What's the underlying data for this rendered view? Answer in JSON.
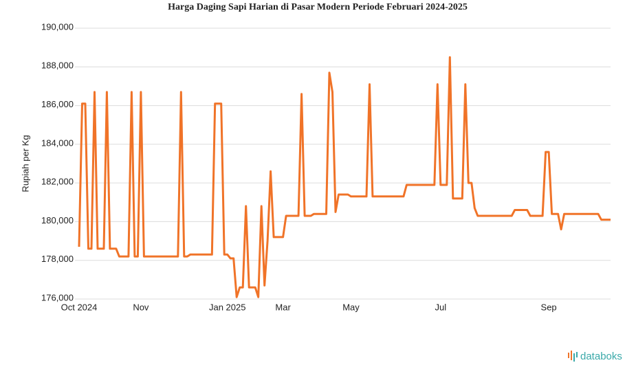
{
  "chart_data": {
    "type": "line",
    "title": "Harga Daging Sapi Harian di Pasar Modern Periode Februari 2024-2025",
    "ylabel": "Rupiah per Kg",
    "categories": [
      "Oct 2024",
      null,
      null,
      null,
      null,
      null,
      null,
      null,
      null,
      null,
      null,
      null,
      null,
      null,
      null,
      null,
      null,
      null,
      null,
      null,
      "Nov",
      null,
      null,
      null,
      null,
      null,
      null,
      null,
      null,
      null,
      null,
      null,
      null,
      null,
      null,
      null,
      null,
      null,
      null,
      null,
      null,
      null,
      null,
      null,
      null,
      null,
      null,
      null,
      "Jan 2025",
      null,
      null,
      null,
      null,
      null,
      null,
      null,
      null,
      null,
      null,
      null,
      null,
      null,
      null,
      null,
      null,
      null,
      "Mar",
      null,
      null,
      null,
      null,
      null,
      null,
      null,
      null,
      null,
      null,
      null,
      null,
      null,
      null,
      null,
      null,
      null,
      null,
      null,
      null,
      null,
      "May",
      null,
      null,
      null,
      null,
      null,
      null,
      null,
      null,
      null,
      null,
      null,
      null,
      null,
      null,
      null,
      null,
      null,
      null,
      null,
      null,
      null,
      null,
      null,
      null,
      null,
      null,
      null,
      null,
      "Jul",
      null,
      null,
      null,
      null,
      null,
      null,
      null,
      null,
      null,
      null,
      null,
      null,
      null,
      null,
      null,
      null,
      null,
      null,
      null,
      null,
      null,
      null,
      null,
      null,
      null,
      null,
      null,
      null,
      null,
      null,
      null,
      null,
      null,
      null,
      "Sep",
      null,
      null,
      null,
      null,
      null,
      null,
      null,
      null,
      null,
      null,
      null,
      null,
      null,
      null,
      null,
      null,
      null,
      null,
      null,
      null
    ],
    "series": [
      {
        "name": "Harga",
        "color": "#f07328",
        "values": [
          178700,
          186100,
          186100,
          178600,
          178600,
          186700,
          178600,
          178600,
          178600,
          186700,
          178600,
          178600,
          178600,
          178200,
          178200,
          178200,
          178200,
          186700,
          178200,
          178200,
          186700,
          178200,
          178200,
          178200,
          178200,
          178200,
          178200,
          178200,
          178200,
          178200,
          178200,
          178200,
          178200,
          186700,
          178200,
          178200,
          178300,
          178300,
          178300,
          178300,
          178300,
          178300,
          178300,
          178300,
          186100,
          186100,
          186100,
          178300,
          178300,
          178100,
          178100,
          176100,
          176600,
          176600,
          180800,
          176600,
          176600,
          176600,
          176100,
          180800,
          176700,
          179000,
          182600,
          179200,
          179200,
          179200,
          179200,
          180300,
          180300,
          180300,
          180300,
          180300,
          186600,
          180300,
          180300,
          180300,
          180400,
          180400,
          180400,
          180400,
          180400,
          187700,
          186700,
          180500,
          181400,
          181400,
          181400,
          181400,
          181300,
          181300,
          181300,
          181300,
          181300,
          181300,
          187100,
          181300,
          181300,
          181300,
          181300,
          181300,
          181300,
          181300,
          181300,
          181300,
          181300,
          181300,
          181900,
          181900,
          181900,
          181900,
          181900,
          181900,
          181900,
          181900,
          181900,
          181900,
          187100,
          181900,
          181900,
          181900,
          188500,
          181200,
          181200,
          181200,
          181200,
          187100,
          182000,
          182000,
          180700,
          180300,
          180300,
          180300,
          180300,
          180300,
          180300,
          180300,
          180300,
          180300,
          180300,
          180300,
          180300,
          180600,
          180600,
          180600,
          180600,
          180600,
          180300,
          180300,
          180300,
          180300,
          180300,
          183600,
          183600,
          180400,
          180400,
          180400,
          179600,
          180400,
          180400,
          180400,
          180400,
          180400,
          180400,
          180400,
          180400,
          180400,
          180400,
          180400,
          180400,
          180100,
          180100,
          180100,
          180100
        ]
      }
    ],
    "ylim": [
      176000,
      190000
    ],
    "yticks": [
      {
        "value": 176000,
        "label": "176,000"
      },
      {
        "value": 178000,
        "label": "178,000"
      },
      {
        "value": 180000,
        "label": "180,000"
      },
      {
        "value": 182000,
        "label": "182,000"
      },
      {
        "value": 184000,
        "label": "184,000"
      },
      {
        "value": 186000,
        "label": "186,000"
      },
      {
        "value": 188000,
        "label": "188,000"
      },
      {
        "value": 190000,
        "label": "190,000"
      }
    ],
    "grid": true,
    "watermark": "databoks"
  }
}
